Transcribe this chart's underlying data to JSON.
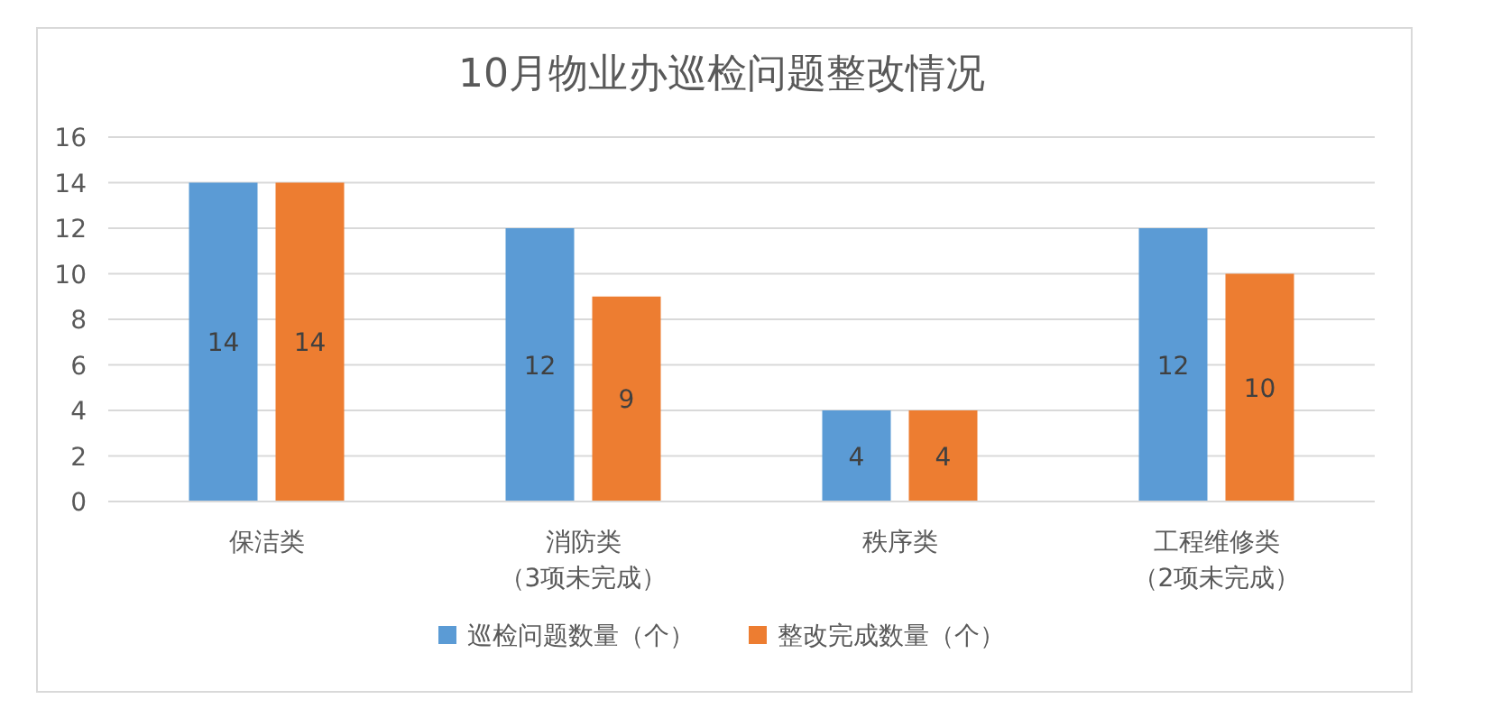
{
  "chart_data": {
    "type": "bar",
    "title": "10月物业办巡检问题整改情况",
    "categories": [
      "保洁类",
      "消防类（3项未完成）",
      "秩序类",
      "工程维修类（2项未完成）"
    ],
    "series": [
      {
        "name": "巡检问题数量（个）",
        "color": "#5b9bd5",
        "values": [
          14,
          12,
          4,
          12
        ]
      },
      {
        "name": "整改完成数量（个）",
        "color": "#ed7d31",
        "values": [
          14,
          9,
          4,
          10
        ]
      }
    ],
    "ylim": [
      0,
      16
    ],
    "yticks": [
      0,
      2,
      4,
      6,
      8,
      10,
      12,
      14,
      16
    ],
    "grid": "y",
    "legend": "bottom",
    "data_labels": true
  }
}
